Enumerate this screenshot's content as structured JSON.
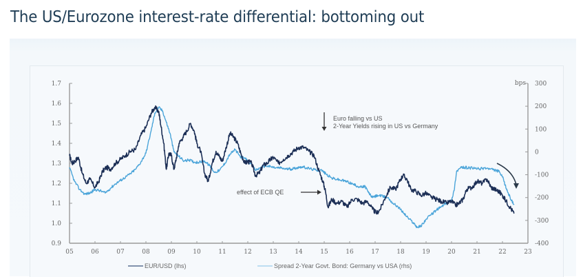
{
  "header": {
    "title": "The US/Eurozone interest-rate differential: bottoming out"
  },
  "chart_data": {
    "type": "line",
    "title": "The US/Eurozone interest-rate differential: bottoming out",
    "xlabel": "",
    "ylabel_left": "",
    "ylabel_right": "bps",
    "x_range": [
      2005,
      2023
    ],
    "x_ticks": [
      "05",
      "06",
      "07",
      "08",
      "09",
      "10",
      "11",
      "12",
      "13",
      "14",
      "15",
      "16",
      "17",
      "18",
      "19",
      "20",
      "21",
      "22",
      "23"
    ],
    "y_left_range": [
      0.9,
      1.7
    ],
    "y_left_ticks": [
      "1.7",
      "1.6",
      "1.5",
      "1.4",
      "1.3",
      "1.2",
      "1.1",
      "1.0",
      "0.9"
    ],
    "y_right_range": [
      -400,
      300
    ],
    "y_right_ticks": [
      "300",
      "200",
      "100",
      "0",
      "-100",
      "-200",
      "-300",
      "-400"
    ],
    "y_right_unit": "bps",
    "grid": false,
    "legend_position": "bottom",
    "series": [
      {
        "name": "EUR/USD (lhs)",
        "axis": "left",
        "color": "#1c2f56",
        "x": [
          2005.0,
          2005.1,
          2005.2,
          2005.35,
          2005.5,
          2005.65,
          2005.8,
          2006.0,
          2006.15,
          2006.3,
          2006.45,
          2006.6,
          2006.8,
          2007.0,
          2007.2,
          2007.4,
          2007.6,
          2007.8,
          2008.0,
          2008.2,
          2008.35,
          2008.5,
          2008.6,
          2008.7,
          2008.8,
          2008.9,
          2009.0,
          2009.1,
          2009.2,
          2009.3,
          2009.45,
          2009.6,
          2009.75,
          2009.9,
          2010.0,
          2010.15,
          2010.3,
          2010.45,
          2010.6,
          2010.75,
          2010.9,
          2011.0,
          2011.15,
          2011.3,
          2011.45,
          2011.6,
          2011.75,
          2011.9,
          2012.0,
          2012.15,
          2012.3,
          2012.45,
          2012.6,
          2012.75,
          2012.9,
          2013.0,
          2013.2,
          2013.4,
          2013.6,
          2013.8,
          2014.0,
          2014.2,
          2014.4,
          2014.6,
          2014.8,
          2014.95,
          2015.05,
          2015.15,
          2015.3,
          2015.5,
          2015.7,
          2015.9,
          2016.1,
          2016.3,
          2016.5,
          2016.7,
          2016.9,
          2017.05,
          2017.2,
          2017.4,
          2017.6,
          2017.8,
          2018.0,
          2018.1,
          2018.25,
          2018.4,
          2018.6,
          2018.8,
          2019.0,
          2019.2,
          2019.4,
          2019.6,
          2019.8,
          2020.0,
          2020.15,
          2020.3,
          2020.45,
          2020.6,
          2020.8,
          2021.0,
          2021.2,
          2021.4,
          2021.55,
          2021.7,
          2021.85,
          2022.0,
          2022.15,
          2022.3,
          2022.45
        ],
        "values": [
          1.34,
          1.3,
          1.31,
          1.33,
          1.25,
          1.2,
          1.22,
          1.18,
          1.21,
          1.26,
          1.28,
          1.27,
          1.3,
          1.32,
          1.34,
          1.36,
          1.37,
          1.44,
          1.48,
          1.55,
          1.58,
          1.56,
          1.48,
          1.4,
          1.27,
          1.35,
          1.34,
          1.27,
          1.33,
          1.4,
          1.43,
          1.46,
          1.5,
          1.46,
          1.4,
          1.36,
          1.25,
          1.21,
          1.3,
          1.36,
          1.33,
          1.31,
          1.38,
          1.45,
          1.43,
          1.4,
          1.34,
          1.3,
          1.31,
          1.3,
          1.24,
          1.25,
          1.29,
          1.3,
          1.32,
          1.33,
          1.3,
          1.32,
          1.34,
          1.36,
          1.38,
          1.38,
          1.36,
          1.34,
          1.26,
          1.21,
          1.16,
          1.08,
          1.12,
          1.1,
          1.11,
          1.08,
          1.12,
          1.12,
          1.1,
          1.11,
          1.07,
          1.05,
          1.07,
          1.13,
          1.18,
          1.17,
          1.22,
          1.24,
          1.22,
          1.17,
          1.16,
          1.14,
          1.15,
          1.13,
          1.12,
          1.11,
          1.1,
          1.11,
          1.09,
          1.1,
          1.12,
          1.17,
          1.18,
          1.21,
          1.2,
          1.22,
          1.18,
          1.17,
          1.16,
          1.14,
          1.11,
          1.08,
          1.05
        ]
      },
      {
        "name": "Spread 2-Year Govt. Bond: Germany vs USA (rhs)",
        "axis": "right",
        "color": "#4aa4d9",
        "x": [
          2005.0,
          2005.2,
          2005.4,
          2005.6,
          2005.8,
          2006.0,
          2006.2,
          2006.4,
          2006.6,
          2006.8,
          2007.0,
          2007.2,
          2007.4,
          2007.6,
          2007.8,
          2008.0,
          2008.2,
          2008.35,
          2008.5,
          2008.65,
          2008.8,
          2008.95,
          2009.1,
          2009.3,
          2009.5,
          2009.7,
          2009.9,
          2010.1,
          2010.3,
          2010.5,
          2010.7,
          2010.9,
          2011.1,
          2011.3,
          2011.5,
          2011.7,
          2011.9,
          2012.1,
          2012.3,
          2012.5,
          2012.7,
          2012.9,
          2013.1,
          2013.3,
          2013.5,
          2013.7,
          2013.9,
          2014.1,
          2014.3,
          2014.5,
          2014.7,
          2014.9,
          2015.1,
          2015.3,
          2015.5,
          2015.7,
          2015.9,
          2016.1,
          2016.3,
          2016.5,
          2016.6,
          2016.75,
          2016.9,
          2017.1,
          2017.3,
          2017.5,
          2017.7,
          2017.9,
          2018.1,
          2018.3,
          2018.5,
          2018.65,
          2018.8,
          2019.0,
          2019.2,
          2019.4,
          2019.6,
          2019.8,
          2020.0,
          2020.1,
          2020.2,
          2020.35,
          2020.5,
          2020.7,
          2020.9,
          2021.1,
          2021.3,
          2021.5,
          2021.7,
          2021.85,
          2022.0,
          2022.15,
          2022.3,
          2022.45
        ],
        "values": [
          -70,
          -130,
          -165,
          -185,
          -180,
          -165,
          -170,
          -180,
          -160,
          -140,
          -125,
          -110,
          -95,
          -75,
          -45,
          -5,
          90,
          170,
          195,
          180,
          130,
          80,
          0,
          -20,
          -40,
          -35,
          -45,
          -45,
          -40,
          -60,
          -90,
          -80,
          -50,
          -10,
          10,
          -20,
          -30,
          -50,
          -80,
          -70,
          -60,
          -65,
          -70,
          -70,
          -75,
          -75,
          -70,
          -65,
          -70,
          -75,
          -80,
          -80,
          -100,
          -115,
          -120,
          -125,
          -130,
          -140,
          -150,
          -155,
          -150,
          -180,
          -200,
          -190,
          -195,
          -200,
          -225,
          -240,
          -265,
          -290,
          -310,
          -330,
          -325,
          -295,
          -275,
          -255,
          -240,
          -225,
          -210,
          -170,
          -85,
          -70,
          -68,
          -70,
          -72,
          -75,
          -70,
          -75,
          -80,
          -85,
          -110,
          -160,
          -200,
          -230
        ]
      }
    ],
    "annotations": [
      {
        "text_lines": [
          "Euro falling vs US",
          "2-Year Yields rising in US vs Germany"
        ],
        "arrow": "down"
      },
      {
        "text": "effect of ECB QE",
        "arrow": "right"
      },
      {
        "text": "",
        "arrow": "curved-down",
        "note": "curved arrow near 2022 pointing down"
      }
    ]
  },
  "legend": [
    {
      "label": "EUR/USD (lhs)",
      "color": "#5a6f92"
    },
    {
      "label": "Spread 2-Year Govt. Bond: Germany vs USA (rhs)",
      "color": "#a8d4ef"
    }
  ]
}
